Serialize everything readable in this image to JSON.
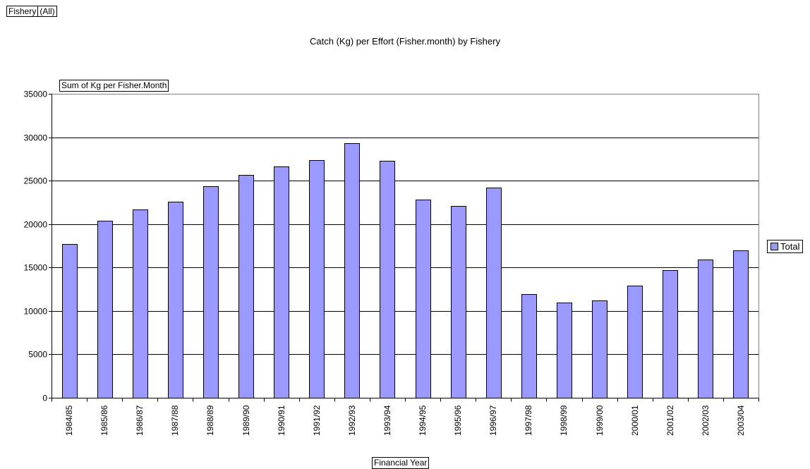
{
  "filter": {
    "label": "Fishery",
    "value": "(All)"
  },
  "chart_data": {
    "type": "bar",
    "title": "Catch (Kg) per Effort (Fisher.month) by Fishery",
    "data_field": "Sum of Kg per Fisher.Month",
    "xlabel": "Financial Year",
    "ylabel": "",
    "ylim": [
      0,
      35000
    ],
    "yticks": [
      0,
      5000,
      10000,
      15000,
      20000,
      25000,
      30000,
      35000
    ],
    "grid": true,
    "legend_position": "right",
    "categories": [
      "1984/85",
      "1985/86",
      "1986/87",
      "1987/88",
      "1988/89",
      "1989/90",
      "1990/91",
      "1991/92",
      "1992/93",
      "1993/94",
      "1994/95",
      "1995/96",
      "1996/97",
      "1997/98",
      "1998/99",
      "1999/00",
      "2000/01",
      "2001/02",
      "2002/03",
      "2003/04"
    ],
    "series": [
      {
        "name": "Total",
        "color": "#9999ff",
        "values": [
          17700,
          20400,
          21700,
          22600,
          24400,
          25700,
          26600,
          27400,
          29300,
          27300,
          22800,
          22100,
          24200,
          11900,
          11000,
          11200,
          12900,
          14700,
          15900,
          17000
        ]
      }
    ]
  }
}
